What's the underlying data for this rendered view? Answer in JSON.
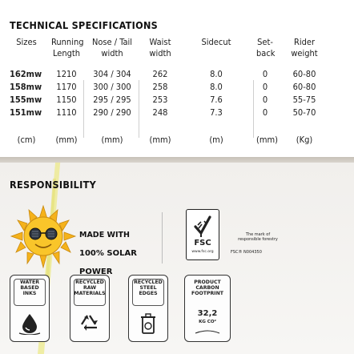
{
  "spec": {
    "title": "TECHNICAL SPECIFICATIONS",
    "headers": [
      {
        "l1": "Sizes",
        "l2": ""
      },
      {
        "l1": "Running",
        "l2": "Length"
      },
      {
        "l1": "Nose / Tail",
        "l2": "width"
      },
      {
        "l1": "Waist",
        "l2": "width"
      },
      {
        "l1": "Sidecut",
        "l2": ""
      },
      {
        "l1": "Set-",
        "l2": "back"
      },
      {
        "l1": "Rider",
        "l2": "weight"
      }
    ],
    "rows": [
      [
        "162mw",
        "1210",
        "304 / 304",
        "262",
        "8.0",
        "0",
        "60-80"
      ],
      [
        "158mw",
        "1170",
        "300 / 300",
        "258",
        "8.0",
        "0",
        "60-80"
      ],
      [
        "155mw",
        "1150",
        "295 / 295",
        "253",
        "7.6",
        "0",
        "55-75"
      ],
      [
        "151mw",
        "1110",
        "290 / 290",
        "248",
        "7.3",
        "0",
        "50-70"
      ]
    ],
    "units": [
      "(cm)",
      "(mm)",
      "(mm)",
      "(mm)",
      "(m)",
      "(mm)",
      "(Kg)"
    ]
  },
  "responsibility": {
    "title": "RESPONSIBILITY",
    "solar": {
      "line1": "MADE WITH",
      "line2": "100% SOLAR",
      "line3": "POWER",
      "icon": "sun-with-sunglasses-icon"
    },
    "fsc": {
      "label": "FSC",
      "site": "www.fsc.org",
      "mark_l1": "The mark of",
      "mark_l2": "responsible forestry",
      "code": "FSC® N004350",
      "icon": "fsc-tree-check-icon"
    },
    "badges": [
      {
        "text": "WATER\nBASED\nINKS",
        "icon": "water-drop-icon"
      },
      {
        "text": "RECYCLED\nRAW\nMATERIALS",
        "icon": "recycle-icon"
      },
      {
        "text": "RECYCLED\nSTEEL\nEDGES",
        "icon": "recycle-bin-icon"
      },
      {
        "text": "PRODUCT\nCARBON\nFOOTPRINT",
        "value": "32,2",
        "unit": "KG CO²",
        "icon": "carbon-footprint-icon"
      }
    ]
  },
  "colors": {
    "accent_yellow": "#e9e067",
    "sun": "#f5b21b",
    "band": "#cdc7bf"
  }
}
